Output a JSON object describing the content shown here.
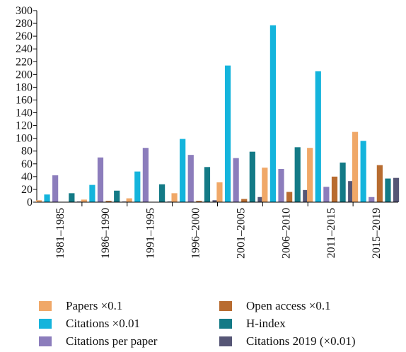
{
  "chart_data": {
    "type": "bar",
    "categories": [
      "1981–1985",
      "1986–1990",
      "1991–1995",
      "1996–2000",
      "2001–2005",
      "2006–2010",
      "2011–2015",
      "2015–2019"
    ],
    "ylim": [
      0,
      300
    ],
    "yticks": [
      0,
      20,
      40,
      60,
      80,
      100,
      120,
      140,
      160,
      180,
      200,
      220,
      240,
      260,
      280,
      300
    ],
    "grid": false,
    "legend_position": "bottom",
    "series": [
      {
        "name": "Papers ×0.1",
        "color": "#f0a868",
        "values": [
          3,
          4,
          6,
          14,
          31,
          54,
          85,
          110
        ]
      },
      {
        "name": "Citations ×0.01",
        "color": "#14b4dc",
        "values": [
          12,
          27,
          48,
          99,
          214,
          277,
          205,
          96
        ]
      },
      {
        "name": "Citations per paper",
        "color": "#8c7dbc",
        "values": [
          42,
          70,
          85,
          74,
          69,
          52,
          24,
          8
        ]
      },
      {
        "name": "Open access ×0.1",
        "color": "#b86c30",
        "values": [
          0,
          2,
          0,
          2,
          5,
          16,
          40,
          58
        ]
      },
      {
        "name": "H-index",
        "color": "#137a86",
        "values": [
          14,
          18,
          28,
          55,
          79,
          86,
          62,
          37
        ]
      },
      {
        "name": "Citations 2019 (×0.01)",
        "color": "#565676",
        "values": [
          1,
          1,
          1,
          3,
          8,
          19,
          33,
          38
        ]
      }
    ]
  }
}
